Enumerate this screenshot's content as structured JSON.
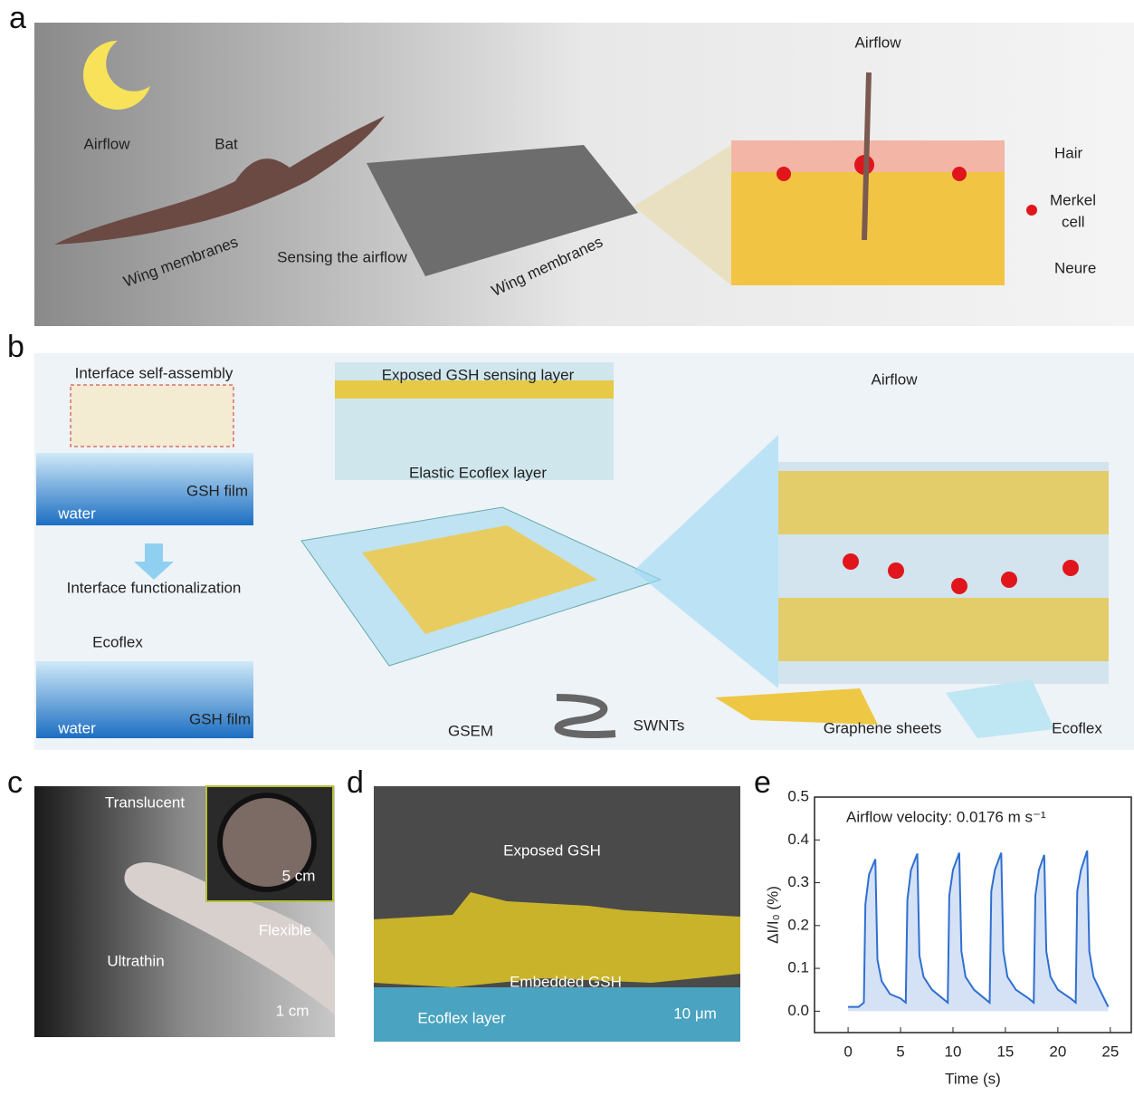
{
  "panels": {
    "a": {
      "label": "a",
      "airflow_left": "Airflow",
      "bat": "Bat",
      "wing_membranes_left": "Wing membranes",
      "sensing": "Sensing the airflow",
      "wing_membranes_right": "Wing membranes",
      "airflow_right": "Airflow",
      "legend": {
        "hair": "Hair",
        "merkel_cell": [
          "Merkel",
          "cell"
        ],
        "neure": "Neure"
      }
    },
    "b": {
      "label": "b",
      "self_assembly": "Interface self-assembly",
      "gsh_film_top": "GSH film",
      "water_top": "water",
      "functionalization": "Interface functionalization",
      "ecoflex_left": "Ecoflex",
      "water_bottom": "water",
      "gsh_film_bottom": "GSH film",
      "exposed_layer": "Exposed GSH sensing layer",
      "elastic_layer": "Elastic Ecoflex layer",
      "gsem": "GSEM",
      "airflow": "Airflow",
      "swnts": "SWNTs",
      "graphene": "Graphene sheets",
      "ecoflex": "Ecoflex"
    },
    "c": {
      "label": "c",
      "translucent": "Translucent",
      "scale_inset": "5 cm",
      "ultrathin": "Ultrathin",
      "flexible": "Flexible",
      "scale": "1 cm"
    },
    "d": {
      "label": "d",
      "exposed": "Exposed GSH",
      "embedded": "Embedded GSH",
      "ecoflex": "Ecoflex layer",
      "scale": "10 μm"
    },
    "e": {
      "label": "e"
    }
  },
  "chart_data": {
    "type": "line",
    "annotation": "Airflow velocity: 0.0176 m s⁻¹",
    "x_label": "Time (s)",
    "y_label": "ΔI/I₀ (%)",
    "xlim": [
      -3.2,
      27
    ],
    "ylim": [
      -0.05,
      0.5
    ],
    "xticks": [
      0,
      5,
      10,
      15,
      20,
      25
    ],
    "yticks": [
      {
        "value": 0,
        "label": "0.0"
      },
      {
        "value": 0.1,
        "label": "0.1"
      },
      {
        "value": 0.2,
        "label": "0.2"
      },
      {
        "value": 0.3,
        "label": "0.3"
      },
      {
        "value": 0.4,
        "label": "0.4"
      },
      {
        "value": 0.5,
        "label": "0.5"
      }
    ],
    "series": [
      {
        "color": "#2f6fd0",
        "x": [
          0,
          1.0,
          1.5,
          1.65,
          2.0,
          2.6,
          2.8,
          3.2,
          4.0,
          5.0,
          5.5,
          5.65,
          6.0,
          6.6,
          6.8,
          7.2,
          8.0,
          9.0,
          9.5,
          9.65,
          10.0,
          10.6,
          10.8,
          11.2,
          12.0,
          13.0,
          13.5,
          13.65,
          14.0,
          14.6,
          14.8,
          15.2,
          16.0,
          17.2,
          17.7,
          17.85,
          18.2,
          18.7,
          18.9,
          19.3,
          20.0,
          21.2,
          21.7,
          21.85,
          22.2,
          22.8,
          23.0,
          23.4,
          24.0,
          24.8
        ],
        "values": [
          0.01,
          0.01,
          0.02,
          0.25,
          0.32,
          0.355,
          0.12,
          0.07,
          0.04,
          0.03,
          0.02,
          0.26,
          0.33,
          0.368,
          0.13,
          0.08,
          0.05,
          0.03,
          0.02,
          0.27,
          0.33,
          0.37,
          0.14,
          0.08,
          0.05,
          0.03,
          0.02,
          0.28,
          0.33,
          0.37,
          0.14,
          0.08,
          0.05,
          0.03,
          0.02,
          0.27,
          0.33,
          0.365,
          0.14,
          0.08,
          0.05,
          0.03,
          0.02,
          0.28,
          0.33,
          0.375,
          0.14,
          0.08,
          0.05,
          0.01
        ]
      }
    ]
  }
}
